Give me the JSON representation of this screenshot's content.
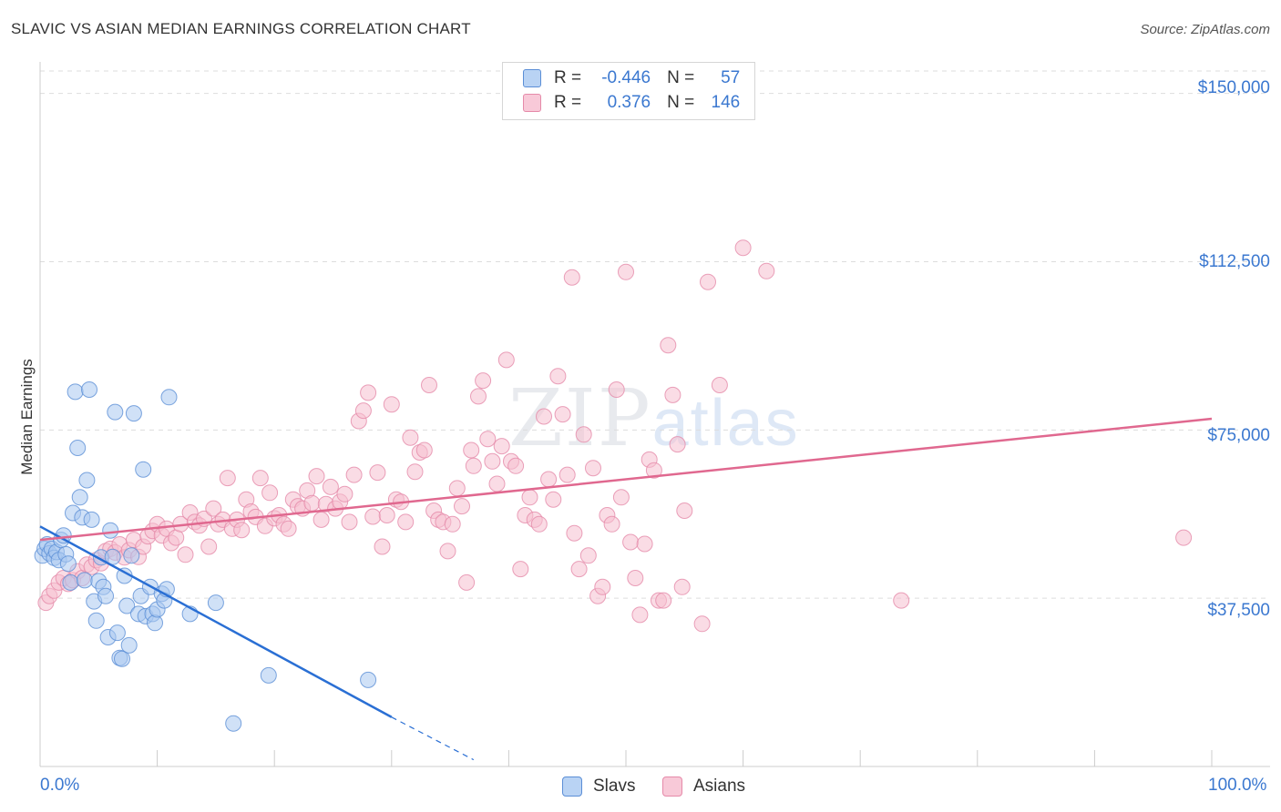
{
  "title": "SLAVIC VS ASIAN MEDIAN EARNINGS CORRELATION CHART",
  "source": "Source: ZipAtlas.com",
  "watermark": {
    "zip": "ZIP",
    "atlas": "atlas"
  },
  "legend": [
    {
      "r_label": "R =",
      "r_value": "-0.446",
      "n_label": "N =",
      "n_value": "57"
    },
    {
      "r_label": "R =",
      "r_value": "0.376",
      "n_label": "N =",
      "n_value": "146"
    }
  ],
  "colors": {
    "slavs_fill": "#a9c8f0",
    "slavs_stroke": "#5b8ed6",
    "slavs_line": "#2a6fd4",
    "asians_fill": "#f6bfd0",
    "asians_stroke": "#e58aa9",
    "asians_line": "#e0688f",
    "tick_text": "#3b78d0",
    "grid": "#dddddd"
  },
  "chart_data": {
    "type": "scatter",
    "title": "SLAVIC VS ASIAN MEDIAN EARNINGS CORRELATION CHART",
    "xlabel": "",
    "ylabel": "Median Earnings",
    "xlim": [
      0,
      100
    ],
    "ylim": [
      0,
      155000
    ],
    "x_tick_labels": [
      "0.0%",
      "100.0%"
    ],
    "y_ticks": [
      37500,
      75000,
      112500,
      150000
    ],
    "y_tick_labels": [
      "$37,500",
      "$75,000",
      "$112,500",
      "$150,000"
    ],
    "grid": true,
    "series": [
      {
        "name": "Slavs",
        "r": -0.446,
        "n": 57,
        "trend": {
          "x": [
            0,
            30
          ],
          "y": [
            53500,
            11000
          ],
          "dashed_to": [
            37,
            1500
          ]
        },
        "points": [
          [
            0.2,
            47000
          ],
          [
            0.4,
            48500
          ],
          [
            0.6,
            49500
          ],
          [
            0.8,
            47500
          ],
          [
            1.0,
            48500
          ],
          [
            1.2,
            46500
          ],
          [
            1.4,
            47800
          ],
          [
            1.6,
            46000
          ],
          [
            1.8,
            50500
          ],
          [
            2.0,
            51500
          ],
          [
            2.2,
            47300
          ],
          [
            2.4,
            45200
          ],
          [
            2.6,
            41000
          ],
          [
            2.8,
            56500
          ],
          [
            3.0,
            83500
          ],
          [
            3.2,
            71000
          ],
          [
            3.4,
            60000
          ],
          [
            3.6,
            55500
          ],
          [
            3.8,
            41500
          ],
          [
            4.0,
            63800
          ],
          [
            4.2,
            84000
          ],
          [
            4.4,
            55000
          ],
          [
            4.6,
            36800
          ],
          [
            4.8,
            32500
          ],
          [
            5.0,
            41300
          ],
          [
            5.2,
            46600
          ],
          [
            5.4,
            40000
          ],
          [
            5.6,
            38000
          ],
          [
            5.8,
            28800
          ],
          [
            6.0,
            52600
          ],
          [
            6.2,
            46700
          ],
          [
            6.4,
            79000
          ],
          [
            6.6,
            29800
          ],
          [
            6.8,
            24200
          ],
          [
            7.0,
            24000
          ],
          [
            7.2,
            42500
          ],
          [
            7.4,
            35800
          ],
          [
            7.6,
            27000
          ],
          [
            7.8,
            47000
          ],
          [
            8.0,
            78700
          ],
          [
            8.4,
            34000
          ],
          [
            8.6,
            38000
          ],
          [
            8.8,
            66200
          ],
          [
            9.0,
            33500
          ],
          [
            9.4,
            40000
          ],
          [
            9.6,
            34000
          ],
          [
            9.8,
            32000
          ],
          [
            10.0,
            35000
          ],
          [
            10.4,
            38500
          ],
          [
            10.6,
            37000
          ],
          [
            10.8,
            39500
          ],
          [
            11.0,
            82300
          ],
          [
            12.8,
            34000
          ],
          [
            16.5,
            9600
          ],
          [
            19.5,
            20300
          ],
          [
            28.0,
            19300
          ],
          [
            15.0,
            36500
          ]
        ]
      },
      {
        "name": "Asians",
        "r": 0.376,
        "n": 146,
        "trend": {
          "x": [
            0,
            100
          ],
          "y": [
            50500,
            77500
          ]
        },
        "points": [
          [
            0.5,
            36500
          ],
          [
            0.8,
            38000
          ],
          [
            1.2,
            39200
          ],
          [
            1.6,
            41000
          ],
          [
            2.0,
            42000
          ],
          [
            2.4,
            40700
          ],
          [
            2.8,
            41500
          ],
          [
            3.2,
            43500
          ],
          [
            3.6,
            42000
          ],
          [
            4.0,
            45000
          ],
          [
            4.4,
            44500
          ],
          [
            4.8,
            46000
          ],
          [
            5.2,
            45300
          ],
          [
            5.6,
            48000
          ],
          [
            6.0,
            48500
          ],
          [
            6.4,
            47700
          ],
          [
            6.8,
            49500
          ],
          [
            7.2,
            46600
          ],
          [
            7.6,
            48200
          ],
          [
            8.0,
            50500
          ],
          [
            8.4,
            46700
          ],
          [
            8.8,
            49000
          ],
          [
            9.2,
            51300
          ],
          [
            9.6,
            52500
          ],
          [
            10.0,
            54000
          ],
          [
            10.4,
            51500
          ],
          [
            10.8,
            53000
          ],
          [
            11.2,
            49800
          ],
          [
            11.6,
            51000
          ],
          [
            12.0,
            54000
          ],
          [
            12.4,
            47200
          ],
          [
            12.8,
            56600
          ],
          [
            13.2,
            54500
          ],
          [
            13.6,
            53700
          ],
          [
            14.0,
            55200
          ],
          [
            14.4,
            49000
          ],
          [
            14.8,
            57500
          ],
          [
            15.2,
            54000
          ],
          [
            15.6,
            55000
          ],
          [
            16.0,
            64300
          ],
          [
            16.4,
            53000
          ],
          [
            16.8,
            55000
          ],
          [
            17.2,
            52700
          ],
          [
            17.6,
            59500
          ],
          [
            18.0,
            56800
          ],
          [
            18.4,
            55600
          ],
          [
            18.8,
            64300
          ],
          [
            19.2,
            53600
          ],
          [
            19.6,
            61000
          ],
          [
            20.0,
            55300
          ],
          [
            20.4,
            56000
          ],
          [
            20.8,
            54000
          ],
          [
            21.2,
            53000
          ],
          [
            21.6,
            59500
          ],
          [
            22.0,
            58000
          ],
          [
            22.4,
            57500
          ],
          [
            22.8,
            61500
          ],
          [
            23.2,
            58700
          ],
          [
            23.6,
            64700
          ],
          [
            24.0,
            55000
          ],
          [
            24.4,
            58500
          ],
          [
            24.8,
            62300
          ],
          [
            25.2,
            57500
          ],
          [
            25.6,
            59000
          ],
          [
            26.0,
            60700
          ],
          [
            26.4,
            54500
          ],
          [
            26.8,
            65000
          ],
          [
            27.2,
            77000
          ],
          [
            27.6,
            79300
          ],
          [
            28.0,
            83300
          ],
          [
            28.4,
            55700
          ],
          [
            28.8,
            65500
          ],
          [
            29.2,
            49000
          ],
          [
            29.6,
            56000
          ],
          [
            30.0,
            80700
          ],
          [
            30.4,
            59500
          ],
          [
            30.8,
            59000
          ],
          [
            31.2,
            54500
          ],
          [
            31.6,
            73300
          ],
          [
            32.0,
            65700
          ],
          [
            32.4,
            70000
          ],
          [
            32.8,
            70500
          ],
          [
            33.2,
            85000
          ],
          [
            33.6,
            57000
          ],
          [
            34.0,
            55000
          ],
          [
            34.4,
            54500
          ],
          [
            34.8,
            48000
          ],
          [
            35.2,
            54000
          ],
          [
            35.6,
            62000
          ],
          [
            36.0,
            58000
          ],
          [
            36.4,
            41000
          ],
          [
            36.8,
            70500
          ],
          [
            37.0,
            67000
          ],
          [
            37.4,
            82500
          ],
          [
            37.8,
            86000
          ],
          [
            38.2,
            73000
          ],
          [
            38.6,
            68000
          ],
          [
            39.0,
            63000
          ],
          [
            39.4,
            71400
          ],
          [
            39.8,
            90600
          ],
          [
            40.2,
            68000
          ],
          [
            40.6,
            67000
          ],
          [
            41.0,
            44000
          ],
          [
            41.4,
            56000
          ],
          [
            41.8,
            60000
          ],
          [
            42.2,
            55000
          ],
          [
            42.6,
            54000
          ],
          [
            43.0,
            78000
          ],
          [
            43.4,
            64000
          ],
          [
            43.8,
            59500
          ],
          [
            44.2,
            87000
          ],
          [
            44.6,
            78500
          ],
          [
            45.0,
            65000
          ],
          [
            45.4,
            109000
          ],
          [
            45.6,
            52000
          ],
          [
            46.0,
            44000
          ],
          [
            46.4,
            74000
          ],
          [
            46.8,
            47000
          ],
          [
            47.2,
            66500
          ],
          [
            47.6,
            38000
          ],
          [
            48.0,
            40000
          ],
          [
            48.4,
            56000
          ],
          [
            48.8,
            54000
          ],
          [
            49.2,
            84000
          ],
          [
            49.6,
            60000
          ],
          [
            50.0,
            110200
          ],
          [
            50.4,
            50000
          ],
          [
            50.8,
            42000
          ],
          [
            51.2,
            33800
          ],
          [
            51.6,
            49600
          ],
          [
            52.0,
            68400
          ],
          [
            52.4,
            66000
          ],
          [
            52.8,
            37000
          ],
          [
            53.2,
            37000
          ],
          [
            53.6,
            93900
          ],
          [
            54.0,
            82800
          ],
          [
            54.4,
            71800
          ],
          [
            54.8,
            40000
          ],
          [
            55.0,
            57000
          ],
          [
            56.5,
            31800
          ],
          [
            57.0,
            108000
          ],
          [
            58.0,
            85000
          ],
          [
            60.0,
            115600
          ],
          [
            62.0,
            110400
          ],
          [
            73.5,
            37000
          ],
          [
            97.6,
            51000
          ]
        ]
      }
    ]
  }
}
